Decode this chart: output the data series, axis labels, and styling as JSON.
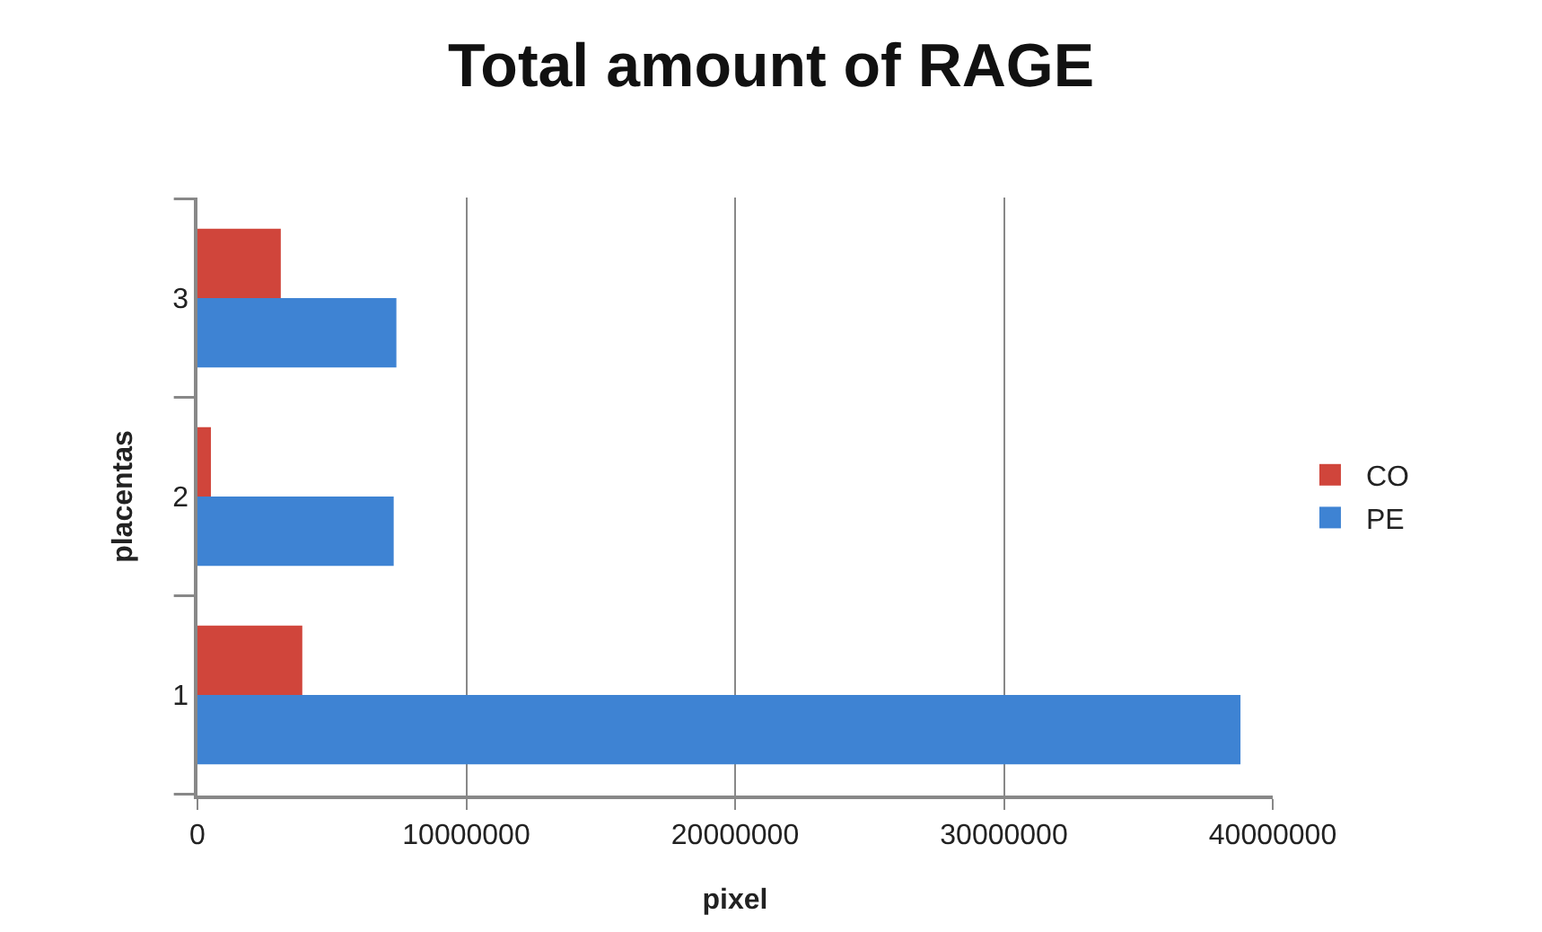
{
  "chart_data": {
    "type": "bar",
    "orientation": "horizontal",
    "title": "Total amount of RAGE",
    "xlabel": "pixel",
    "ylabel": "placentas",
    "categories": [
      "3",
      "2",
      "1"
    ],
    "series": [
      {
        "name": "CO",
        "color": "#d0453b",
        "values": [
          3100000,
          500000,
          3900000
        ]
      },
      {
        "name": "PE",
        "color": "#3e83d3",
        "values": [
          7400000,
          7300000,
          38800000
        ]
      }
    ],
    "xlim": [
      0,
      40000000
    ],
    "xticks": [
      0,
      10000000,
      20000000,
      30000000,
      40000000
    ],
    "grid": "x",
    "legend": "right"
  }
}
